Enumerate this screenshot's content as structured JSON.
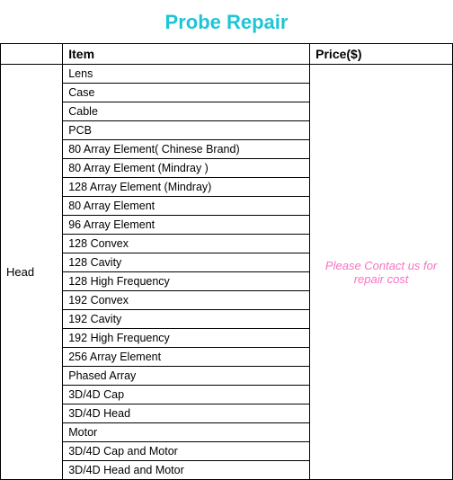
{
  "title": {
    "text": "Probe Repair",
    "color": "#1fc5d6",
    "fontsize": 22
  },
  "table": {
    "headers": {
      "category": "",
      "item": "Item",
      "price": "Price($)"
    },
    "category_label": "Head",
    "items": [
      "Lens",
      "Case",
      "Cable",
      "PCB",
      "80 Array Element( Chinese Brand)",
      "80 Array Element (Mindray )",
      "128 Array Element (Mindray)",
      "80 Array Element",
      "96 Array Element",
      "128 Convex",
      "128 Cavity",
      "128 High Frequency",
      "192 Convex",
      "192 Cavity",
      "192 High Frequency",
      "256 Array Element",
      "Phased Array",
      "3D/4D Cap",
      "3D/4D Head",
      "Motor",
      "3D/4D Cap and Motor",
      "3D/4D Head and Motor"
    ],
    "price_note": {
      "text": "Please Contact us for repair cost",
      "color": "#f772c4",
      "fontsize": 13
    },
    "border_color": "#000000",
    "text_color": "#000000"
  }
}
